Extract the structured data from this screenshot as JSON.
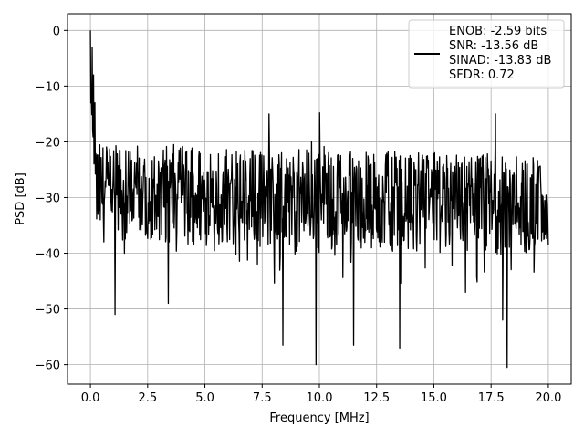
{
  "chart_data": {
    "type": "line",
    "xlabel": "Frequency [MHz]",
    "ylabel": "PSD [dB]",
    "xlim": [
      -1.0,
      21.0
    ],
    "ylim": [
      -63.5,
      3.0
    ],
    "x_ticks": [
      0.0,
      2.5,
      5.0,
      7.5,
      10.0,
      12.5,
      15.0,
      17.5,
      20.0
    ],
    "x_tick_labels": [
      "0.0",
      "2.5",
      "5.0",
      "7.5",
      "10.0",
      "12.5",
      "15.0",
      "17.5",
      "20.0"
    ],
    "y_ticks": [
      0,
      -10,
      -20,
      -30,
      -40,
      -50,
      -60
    ],
    "y_tick_labels": [
      "0",
      "−10",
      "−20",
      "−30",
      "−40",
      "−50",
      "−60"
    ],
    "grid": true,
    "legend": {
      "placement": "top-right",
      "lines": [
        "ENOB: -2.59 bits",
        "SNR: -13.56 dB",
        "SINAD: -13.83 dB",
        "SFDR: 0.72"
      ]
    },
    "line_color": "#000000",
    "series": [
      {
        "x_range": [
          0.0,
          20.0
        ],
        "points": 1024,
        "peak": {
          "x": 0.0,
          "y": 0.0
        },
        "floor_upper": -20,
        "floor_lower": -38,
        "notable_dips": [
          {
            "x": 1.08,
            "y": -51
          },
          {
            "x": 3.4,
            "y": -49
          },
          {
            "x": 8.4,
            "y": -56.5
          },
          {
            "x": 9.85,
            "y": -60
          },
          {
            "x": 11.5,
            "y": -56.5
          },
          {
            "x": 13.5,
            "y": -57
          },
          {
            "x": 18.2,
            "y": -60.5
          },
          {
            "x": 18.0,
            "y": -52
          }
        ],
        "notable_peaks": [
          {
            "x": 0.07,
            "y": -3
          },
          {
            "x": 0.13,
            "y": -8
          },
          {
            "x": 0.2,
            "y": -13
          },
          {
            "x": 7.8,
            "y": -15
          },
          {
            "x": 10.0,
            "y": -14.8
          },
          {
            "x": 17.7,
            "y": -15
          }
        ]
      }
    ]
  }
}
